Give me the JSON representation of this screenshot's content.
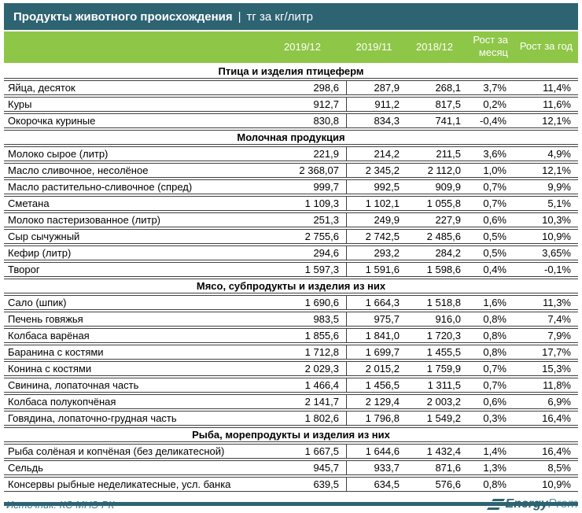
{
  "title_bar": {
    "title": "Продукты животного происхождения",
    "separator": "|",
    "unit": "тг за кг/литр"
  },
  "chart_data": {
    "type": "table",
    "title": "Продукты животного происхождения",
    "unit": "тг за кг/литр",
    "columns": [
      "2019/12",
      "2019/11",
      "2018/12",
      "Рост за месяц",
      "Рост за год"
    ],
    "sections": [
      {
        "title": "Птица и изделия птицеферм",
        "rows": [
          {
            "name": "Яйца, десяток",
            "values": [
              "298,6",
              "287,9",
              "268,1",
              "3,7%",
              "11,4%"
            ]
          },
          {
            "name": "Куры",
            "values": [
              "912,7",
              "911,2",
              "817,5",
              "0,2%",
              "11,6%"
            ]
          },
          {
            "name": "Окорочка куриные",
            "values": [
              "830,8",
              "834,3",
              "741,1",
              "-0,4%",
              "12,1%"
            ]
          }
        ]
      },
      {
        "title": "Молочная продукция",
        "rows": [
          {
            "name": "Молоко сырое (литр)",
            "values": [
              "221,9",
              "214,2",
              "211,5",
              "3,6%",
              "4,9%"
            ]
          },
          {
            "name": "Масло сливочное, несолёное",
            "values": [
              "2 368,07",
              "2 345,2",
              "2 112,0",
              "1,0%",
              "12,1%"
            ]
          },
          {
            "name": "Масло растительно-сливочное (спред)",
            "values": [
              "999,7",
              "992,5",
              "909,9",
              "0,7%",
              "9,9%"
            ]
          },
          {
            "name": "Сметана",
            "values": [
              "1 109,3",
              "1 102,1",
              "1 055,8",
              "0,7%",
              "5,1%"
            ]
          },
          {
            "name": "Молоко пастеризованное (литр)",
            "values": [
              "251,3",
              "249,9",
              "227,9",
              "0,6%",
              "10,3%"
            ]
          },
          {
            "name": "Сыр сычужный",
            "values": [
              "2 755,6",
              "2 742,5",
              "2 485,6",
              "0,5%",
              "10,9%"
            ]
          },
          {
            "name": "Кефир (литр)",
            "values": [
              "294,6",
              "293,2",
              "284,2",
              "0,5%",
              "3,65%"
            ]
          },
          {
            "name": "Творог",
            "values": [
              "1 597,3",
              "1 591,6",
              "1 598,6",
              "0,4%",
              "-0,1%"
            ]
          }
        ]
      },
      {
        "title": "Мясо, субпродукты и изделия из них",
        "rows": [
          {
            "name": "Сало (шпик)",
            "values": [
              "1 690,6",
              "1 664,3",
              "1 518,8",
              "1,6%",
              "11,3%"
            ]
          },
          {
            "name": "Печень говяжья",
            "values": [
              "983,5",
              "975,7",
              "916,0",
              "0,8%",
              "7,4%"
            ]
          },
          {
            "name": "Колбаса варёная",
            "values": [
              "1 855,6",
              "1 841,0",
              "1 720,3",
              "0,8%",
              "7,9%"
            ]
          },
          {
            "name": "Баранина с костями",
            "values": [
              "1 712,8",
              "1 699,7",
              "1 455,5",
              "0,8%",
              "17,7%"
            ]
          },
          {
            "name": "Конина с костями",
            "values": [
              "2 029,3",
              "2 015,2",
              "1 759,9",
              "0,7%",
              "15,3%"
            ]
          },
          {
            "name": "Свинина, лопаточная часть",
            "values": [
              "1 466,4",
              "1 456,5",
              "1 311,5",
              "0,7%",
              "11,8%"
            ]
          },
          {
            "name": "Колбаса полукопчёная",
            "values": [
              "2 141,7",
              "2 129,4",
              "2 003,2",
              "0,6%",
              "6,9%"
            ]
          },
          {
            "name": "Говядина, лопаточно-грудная часть",
            "values": [
              "1 802,6",
              "1 796,8",
              "1 549,2",
              "0,3%",
              "16,4%"
            ]
          }
        ]
      },
      {
        "title": "Рыба, морепродукты и изделия из них",
        "rows": [
          {
            "name": "Рыба солёная и копчёная (без деликатесной)",
            "values": [
              "1 667,5",
              "1 644,6",
              "1 432,4",
              "1,4%",
              "16,4%"
            ]
          },
          {
            "name": "Сельдь",
            "values": [
              "945,7",
              "933,7",
              "871,6",
              "1,3%",
              "8,5%"
            ]
          },
          {
            "name": "Консервы рыбные неделикатесные, усл. банка",
            "values": [
              "639,5",
              "634,5",
              "576,6",
              "0,8%",
              "10,9%"
            ]
          }
        ]
      }
    ]
  },
  "footer": {
    "source": "Источник: КС МНЭ РК",
    "logo_bold": "Energy",
    "logo_light": "Prom"
  },
  "colors": {
    "teal": "#2e6372",
    "green": "#8ec647",
    "border": "#404040",
    "source_text": "#3d7a8c",
    "logo_light_text": "#5e93a4"
  }
}
